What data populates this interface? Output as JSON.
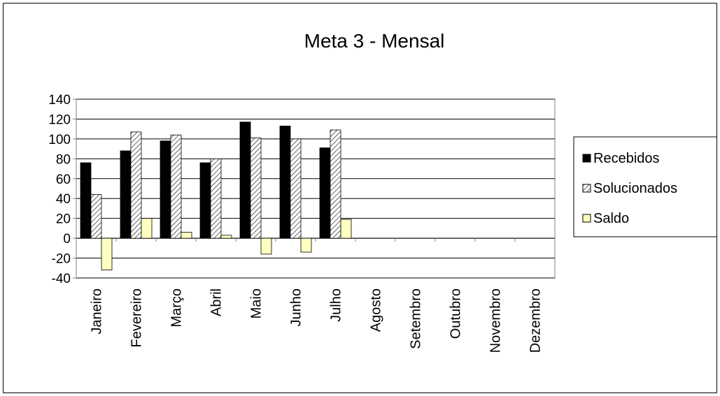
{
  "chart_data": {
    "type": "bar",
    "title": "Meta 3 - Mensal",
    "xlabel": "",
    "ylabel": "",
    "ylim": [
      -40,
      140
    ],
    "yticks": [
      -40,
      -20,
      0,
      20,
      40,
      60,
      80,
      100,
      120,
      140
    ],
    "grid": true,
    "legend_position": "right",
    "categories": [
      "Janeiro",
      "Fevereiro",
      "Março",
      "Abril",
      "Maio",
      "Junho",
      "Julho",
      "Agosto",
      "Setembro",
      "Outubro",
      "Novembro",
      "Dezembro"
    ],
    "series": [
      {
        "name": "Recebidos",
        "color": "#000000",
        "pattern": "solid",
        "values": [
          76,
          88,
          98,
          76,
          117,
          113,
          91,
          null,
          null,
          null,
          null,
          null
        ]
      },
      {
        "name": "Solucionados",
        "color": "#ffffff",
        "pattern": "diagonal-hatch",
        "values": [
          44,
          107,
          104,
          80,
          101,
          100,
          109,
          null,
          null,
          null,
          null,
          null
        ]
      },
      {
        "name": "Saldo",
        "color": "#ffffc0",
        "pattern": "solid",
        "values": [
          -32,
          20,
          6,
          3,
          -16,
          -14,
          19,
          null,
          null,
          null,
          null,
          null
        ]
      }
    ]
  }
}
